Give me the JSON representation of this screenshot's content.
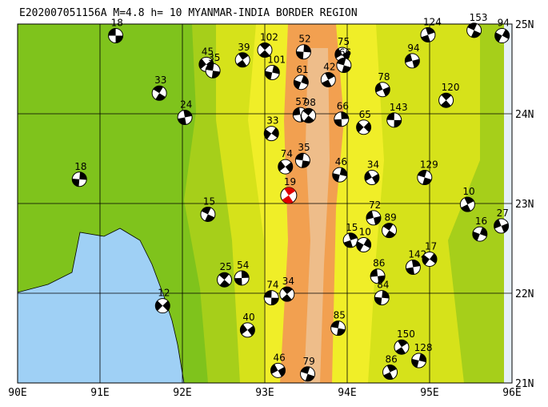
{
  "title": "E202007051156A M=4.8 h= 10 MYANMAR-INDIA BORDER REGION",
  "xlim": [
    90,
    96
  ],
  "ylim": [
    21,
    25
  ],
  "xticks": [
    {
      "value": 90,
      "label": "90E"
    },
    {
      "value": 91,
      "label": "91E"
    },
    {
      "value": 92,
      "label": "92E"
    },
    {
      "value": 93,
      "label": "93E"
    },
    {
      "value": 94,
      "label": "94E"
    },
    {
      "value": 95,
      "label": "95E"
    },
    {
      "value": 96,
      "label": "96E"
    }
  ],
  "yticks": [
    {
      "value": 21,
      "label": "21N"
    },
    {
      "value": 22,
      "label": "22N"
    },
    {
      "value": 23,
      "label": "23N"
    },
    {
      "value": 24,
      "label": "24N"
    },
    {
      "value": 25,
      "label": "25N"
    }
  ],
  "grid": true,
  "ball_color": "#000000",
  "events": [
    {
      "depth": 18,
      "lon": 91.19,
      "lat": 24.87
    },
    {
      "depth": 102,
      "lon": 93.0,
      "lat": 24.71
    },
    {
      "depth": 52,
      "lon": 93.47,
      "lat": 24.69
    },
    {
      "depth": 45,
      "lon": 92.29,
      "lat": 24.55
    },
    {
      "depth": 35,
      "lon": 92.37,
      "lat": 24.48
    },
    {
      "depth": 39,
      "lon": 92.73,
      "lat": 24.6
    },
    {
      "depth": 101,
      "lon": 93.09,
      "lat": 24.46
    },
    {
      "depth": 75,
      "lon": 93.94,
      "lat": 24.66
    },
    {
      "depth": 66,
      "lon": 93.96,
      "lat": 24.54
    },
    {
      "depth": 42,
      "lon": 93.77,
      "lat": 24.38
    },
    {
      "depth": 61,
      "lon": 93.44,
      "lat": 24.35
    },
    {
      "depth": 78,
      "lon": 94.43,
      "lat": 24.27
    },
    {
      "depth": 153,
      "lon": 95.54,
      "lat": 24.93
    },
    {
      "depth": 124,
      "lon": 94.98,
      "lat": 24.88
    },
    {
      "depth": 94,
      "lon": 95.88,
      "lat": 24.87
    },
    {
      "depth": 94,
      "lon": 94.79,
      "lat": 24.59
    },
    {
      "depth": 33,
      "lon": 91.72,
      "lat": 24.23
    },
    {
      "depth": 24,
      "lon": 92.03,
      "lat": 23.96
    },
    {
      "depth": 33,
      "lon": 93.08,
      "lat": 23.78
    },
    {
      "depth": 57,
      "lon": 93.43,
      "lat": 23.99
    },
    {
      "depth": 98,
      "lon": 93.53,
      "lat": 23.98
    },
    {
      "depth": 66,
      "lon": 93.93,
      "lat": 23.94
    },
    {
      "depth": 65,
      "lon": 94.2,
      "lat": 23.85
    },
    {
      "depth": 143,
      "lon": 94.57,
      "lat": 23.93
    },
    {
      "depth": 120,
      "lon": 95.2,
      "lat": 24.15
    },
    {
      "depth": 18,
      "lon": 90.75,
      "lat": 23.27
    },
    {
      "depth": 74,
      "lon": 93.25,
      "lat": 23.41
    },
    {
      "depth": 35,
      "lon": 93.46,
      "lat": 23.48
    },
    {
      "depth": 19,
      "lon": 93.29,
      "lat": 23.09,
      "color": "#e00000"
    },
    {
      "depth": 46,
      "lon": 93.91,
      "lat": 23.32
    },
    {
      "depth": 34,
      "lon": 94.3,
      "lat": 23.29
    },
    {
      "depth": 129,
      "lon": 94.94,
      "lat": 23.29
    },
    {
      "depth": 10,
      "lon": 95.46,
      "lat": 22.99
    },
    {
      "depth": 16,
      "lon": 95.61,
      "lat": 22.66
    },
    {
      "depth": 27,
      "lon": 95.87,
      "lat": 22.75
    },
    {
      "depth": 15,
      "lon": 92.31,
      "lat": 22.88
    },
    {
      "depth": 15,
      "lon": 94.04,
      "lat": 22.59
    },
    {
      "depth": 10,
      "lon": 94.2,
      "lat": 22.54
    },
    {
      "depth": 72,
      "lon": 94.32,
      "lat": 22.84
    },
    {
      "depth": 89,
      "lon": 94.51,
      "lat": 22.7
    },
    {
      "depth": 142,
      "lon": 94.8,
      "lat": 22.29
    },
    {
      "depth": 17,
      "lon": 95.0,
      "lat": 22.38
    },
    {
      "depth": 86,
      "lon": 94.37,
      "lat": 22.19
    },
    {
      "depth": 25,
      "lon": 92.51,
      "lat": 22.15
    },
    {
      "depth": 54,
      "lon": 92.72,
      "lat": 22.17
    },
    {
      "depth": 12,
      "lon": 91.76,
      "lat": 21.86
    },
    {
      "depth": 74,
      "lon": 93.08,
      "lat": 21.95
    },
    {
      "depth": 34,
      "lon": 93.27,
      "lat": 21.99
    },
    {
      "depth": 84,
      "lon": 94.42,
      "lat": 21.95
    },
    {
      "depth": 40,
      "lon": 92.79,
      "lat": 21.59
    },
    {
      "depth": 85,
      "lon": 93.89,
      "lat": 21.61
    },
    {
      "depth": 150,
      "lon": 94.66,
      "lat": 21.4
    },
    {
      "depth": 128,
      "lon": 94.87,
      "lat": 21.25
    },
    {
      "depth": 46,
      "lon": 93.16,
      "lat": 21.14
    },
    {
      "depth": 79,
      "lon": 93.52,
      "lat": 21.1
    },
    {
      "depth": 86,
      "lon": 94.52,
      "lat": 21.12
    }
  ]
}
